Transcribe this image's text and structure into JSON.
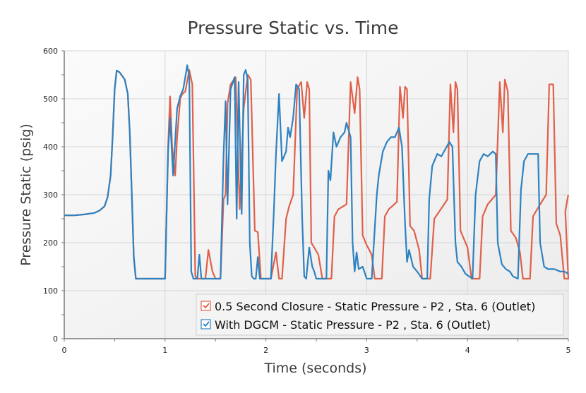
{
  "chart_data": {
    "type": "line",
    "title": "Pressure Static vs. Time",
    "xlabel": "Time (seconds)",
    "ylabel": "Pressure Static (psig)",
    "xlim": [
      0,
      5
    ],
    "ylim": [
      0,
      600
    ],
    "x_ticks": [
      0,
      1,
      2,
      3,
      4,
      5
    ],
    "x_tick_labels": [
      "0",
      "1",
      "2",
      "3",
      "4",
      "5"
    ],
    "y_ticks": [
      0,
      100,
      200,
      300,
      400,
      500,
      600
    ],
    "y_tick_labels": [
      "0",
      "100",
      "200",
      "300",
      "400",
      "500",
      "600"
    ],
    "x_minor_ticks": [
      0.5,
      1.5,
      2.5,
      3.5,
      4.5
    ],
    "y_minor_ticks": [
      50,
      150,
      250,
      350,
      450,
      550
    ],
    "grid": true,
    "legend_position": "bottom-right",
    "series": [
      {
        "name": "0.5 Second Closure - Static Pressure - P2 , Sta. 6 (Outlet)",
        "color": "#e0604a",
        "checked": true,
        "points": [
          [
            0,
            257
          ],
          [
            0.1,
            257
          ],
          [
            0.2,
            259
          ],
          [
            0.3,
            262
          ],
          [
            0.35,
            267
          ],
          [
            0.4,
            276
          ],
          [
            0.43,
            295
          ],
          [
            0.46,
            340
          ],
          [
            0.48,
            420
          ],
          [
            0.5,
            520
          ],
          [
            0.52,
            559
          ],
          [
            0.55,
            555
          ],
          [
            0.6,
            540
          ],
          [
            0.63,
            510
          ],
          [
            0.65,
            430
          ],
          [
            0.67,
            300
          ],
          [
            0.69,
            170
          ],
          [
            0.71,
            125
          ],
          [
            1.0,
            125
          ],
          [
            1.03,
            400
          ],
          [
            1.05,
            505
          ],
          [
            1.07,
            400
          ],
          [
            1.1,
            340
          ],
          [
            1.12,
            420
          ],
          [
            1.15,
            500
          ],
          [
            1.17,
            510
          ],
          [
            1.2,
            515
          ],
          [
            1.24,
            560
          ],
          [
            1.27,
            530
          ],
          [
            1.3,
            130
          ],
          [
            1.32,
            125
          ],
          [
            1.4,
            125
          ],
          [
            1.43,
            185
          ],
          [
            1.47,
            140
          ],
          [
            1.5,
            125
          ],
          [
            1.55,
            125
          ],
          [
            1.58,
            290
          ],
          [
            1.6,
            300
          ],
          [
            1.62,
            490
          ],
          [
            1.65,
            530
          ],
          [
            1.7,
            545
          ],
          [
            1.74,
            270
          ],
          [
            1.78,
            480
          ],
          [
            1.82,
            550
          ],
          [
            1.85,
            540
          ],
          [
            1.89,
            225
          ],
          [
            1.92,
            222
          ],
          [
            1.95,
            125
          ],
          [
            2.05,
            125
          ],
          [
            2.1,
            180
          ],
          [
            2.13,
            125
          ],
          [
            2.16,
            125
          ],
          [
            2.2,
            250
          ],
          [
            2.23,
            275
          ],
          [
            2.27,
            300
          ],
          [
            2.31,
            520
          ],
          [
            2.35,
            535
          ],
          [
            2.38,
            460
          ],
          [
            2.41,
            535
          ],
          [
            2.43,
            520
          ],
          [
            2.45,
            200
          ],
          [
            2.48,
            190
          ],
          [
            2.52,
            175
          ],
          [
            2.56,
            125
          ],
          [
            2.65,
            125
          ],
          [
            2.68,
            255
          ],
          [
            2.72,
            270
          ],
          [
            2.8,
            280
          ],
          [
            2.84,
            535
          ],
          [
            2.88,
            470
          ],
          [
            2.91,
            545
          ],
          [
            2.93,
            520
          ],
          [
            2.96,
            215
          ],
          [
            3.0,
            195
          ],
          [
            3.05,
            175
          ],
          [
            3.08,
            125
          ],
          [
            3.15,
            125
          ],
          [
            3.18,
            255
          ],
          [
            3.22,
            270
          ],
          [
            3.3,
            285
          ],
          [
            3.33,
            525
          ],
          [
            3.36,
            460
          ],
          [
            3.38,
            525
          ],
          [
            3.4,
            520
          ],
          [
            3.43,
            235
          ],
          [
            3.47,
            225
          ],
          [
            3.52,
            185
          ],
          [
            3.55,
            125
          ],
          [
            3.63,
            125
          ],
          [
            3.67,
            250
          ],
          [
            3.72,
            265
          ],
          [
            3.8,
            290
          ],
          [
            3.83,
            530
          ],
          [
            3.86,
            430
          ],
          [
            3.88,
            535
          ],
          [
            3.9,
            520
          ],
          [
            3.93,
            225
          ],
          [
            3.97,
            205
          ],
          [
            4.0,
            190
          ],
          [
            4.04,
            125
          ],
          [
            4.12,
            125
          ],
          [
            4.15,
            255
          ],
          [
            4.2,
            280
          ],
          [
            4.28,
            300
          ],
          [
            4.32,
            535
          ],
          [
            4.35,
            430
          ],
          [
            4.37,
            540
          ],
          [
            4.4,
            515
          ],
          [
            4.43,
            225
          ],
          [
            4.48,
            210
          ],
          [
            4.52,
            180
          ],
          [
            4.55,
            125
          ],
          [
            4.62,
            125
          ],
          [
            4.65,
            255
          ],
          [
            4.72,
            280
          ],
          [
            4.78,
            300
          ],
          [
            4.81,
            530
          ],
          [
            4.85,
            530
          ],
          [
            4.88,
            240
          ],
          [
            4.92,
            215
          ],
          [
            4.96,
            125
          ],
          [
            5.0,
            125
          ],
          [
            4.97,
            265
          ],
          [
            4.99,
            290
          ],
          [
            5.0,
            300
          ]
        ]
      },
      {
        "name": "With DGCM - Static Pressure - P2 , Sta. 6 (Outlet)",
        "color": "#2e82c0",
        "checked": true,
        "points": [
          [
            0,
            257
          ],
          [
            0.1,
            257
          ],
          [
            0.2,
            259
          ],
          [
            0.3,
            262
          ],
          [
            0.35,
            267
          ],
          [
            0.4,
            276
          ],
          [
            0.43,
            295
          ],
          [
            0.46,
            340
          ],
          [
            0.48,
            420
          ],
          [
            0.5,
            520
          ],
          [
            0.52,
            559
          ],
          [
            0.55,
            555
          ],
          [
            0.6,
            540
          ],
          [
            0.63,
            510
          ],
          [
            0.65,
            430
          ],
          [
            0.67,
            300
          ],
          [
            0.69,
            170
          ],
          [
            0.71,
            125
          ],
          [
            1.0,
            125
          ],
          [
            1.03,
            390
          ],
          [
            1.05,
            460
          ],
          [
            1.08,
            340
          ],
          [
            1.12,
            480
          ],
          [
            1.15,
            505
          ],
          [
            1.18,
            520
          ],
          [
            1.2,
            545
          ],
          [
            1.22,
            570
          ],
          [
            1.24,
            545
          ],
          [
            1.26,
            140
          ],
          [
            1.28,
            125
          ],
          [
            1.32,
            125
          ],
          [
            1.34,
            175
          ],
          [
            1.36,
            125
          ],
          [
            1.55,
            125
          ],
          [
            1.58,
            380
          ],
          [
            1.6,
            495
          ],
          [
            1.62,
            280
          ],
          [
            1.65,
            520
          ],
          [
            1.69,
            545
          ],
          [
            1.71,
            250
          ],
          [
            1.73,
            535
          ],
          [
            1.76,
            260
          ],
          [
            1.78,
            550
          ],
          [
            1.8,
            560
          ],
          [
            1.82,
            540
          ],
          [
            1.84,
            200
          ],
          [
            1.86,
            130
          ],
          [
            1.88,
            125
          ],
          [
            1.9,
            125
          ],
          [
            1.92,
            170
          ],
          [
            1.94,
            125
          ],
          [
            2.05,
            125
          ],
          [
            2.08,
            270
          ],
          [
            2.1,
            385
          ],
          [
            2.13,
            510
          ],
          [
            2.16,
            370
          ],
          [
            2.2,
            390
          ],
          [
            2.22,
            440
          ],
          [
            2.24,
            420
          ],
          [
            2.27,
            460
          ],
          [
            2.3,
            530
          ],
          [
            2.33,
            520
          ],
          [
            2.36,
            250
          ],
          [
            2.38,
            130
          ],
          [
            2.4,
            125
          ],
          [
            2.43,
            190
          ],
          [
            2.46,
            150
          ],
          [
            2.48,
            140
          ],
          [
            2.5,
            125
          ],
          [
            2.6,
            125
          ],
          [
            2.62,
            350
          ],
          [
            2.64,
            330
          ],
          [
            2.67,
            430
          ],
          [
            2.7,
            400
          ],
          [
            2.74,
            420
          ],
          [
            2.78,
            430
          ],
          [
            2.8,
            450
          ],
          [
            2.84,
            420
          ],
          [
            2.86,
            200
          ],
          [
            2.88,
            140
          ],
          [
            2.9,
            180
          ],
          [
            2.92,
            145
          ],
          [
            2.96,
            150
          ],
          [
            3.0,
            125
          ],
          [
            3.05,
            125
          ],
          [
            3.1,
            300
          ],
          [
            3.12,
            340
          ],
          [
            3.16,
            390
          ],
          [
            3.2,
            410
          ],
          [
            3.24,
            420
          ],
          [
            3.28,
            420
          ],
          [
            3.32,
            440
          ],
          [
            3.35,
            400
          ],
          [
            3.38,
            240
          ],
          [
            3.4,
            160
          ],
          [
            3.42,
            185
          ],
          [
            3.46,
            150
          ],
          [
            3.5,
            140
          ],
          [
            3.55,
            125
          ],
          [
            3.6,
            125
          ],
          [
            3.62,
            290
          ],
          [
            3.65,
            360
          ],
          [
            3.7,
            385
          ],
          [
            3.74,
            380
          ],
          [
            3.78,
            395
          ],
          [
            3.82,
            410
          ],
          [
            3.85,
            400
          ],
          [
            3.88,
            200
          ],
          [
            3.9,
            160
          ],
          [
            3.94,
            150
          ],
          [
            3.98,
            135
          ],
          [
            4.05,
            125
          ],
          [
            4.08,
            300
          ],
          [
            4.12,
            370
          ],
          [
            4.16,
            385
          ],
          [
            4.2,
            380
          ],
          [
            4.25,
            390
          ],
          [
            4.28,
            385
          ],
          [
            4.3,
            200
          ],
          [
            4.34,
            155
          ],
          [
            4.38,
            145
          ],
          [
            4.42,
            140
          ],
          [
            4.45,
            130
          ],
          [
            4.5,
            125
          ],
          [
            4.53,
            310
          ],
          [
            4.56,
            370
          ],
          [
            4.6,
            385
          ],
          [
            4.66,
            385
          ],
          [
            4.7,
            385
          ],
          [
            4.72,
            200
          ],
          [
            4.76,
            150
          ],
          [
            4.8,
            145
          ],
          [
            4.86,
            145
          ],
          [
            4.92,
            140
          ],
          [
            4.96,
            140
          ],
          [
            5.0,
            135
          ]
        ]
      }
    ]
  }
}
